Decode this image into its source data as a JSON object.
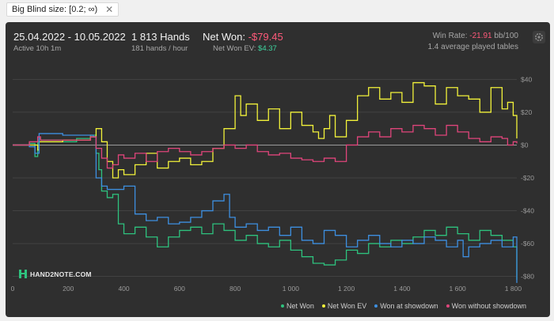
{
  "filter": {
    "label": "Big Blind size: [0.2; ∞)",
    "close_glyph": "✕"
  },
  "header": {
    "date_range": "25.04.2022 - 10.05.2022",
    "active": "Active 10h 1m",
    "hands": "1 813 Hands",
    "hands_per_hour": "181 hands / hour",
    "net_won_label": "Net Won:",
    "net_won_value": "-$79.45",
    "net_won_ev_label": "Net Won  EV:",
    "net_won_ev_value": "$4.37",
    "win_rate_label": "Win Rate:",
    "win_rate_value": "-21.91",
    "win_rate_unit": "bb/100",
    "avg_tables": "1.4 average played tables"
  },
  "logo": {
    "text": "HAND2NOTE.COM"
  },
  "colors": {
    "net_won": "#2ec27e",
    "net_won_ev": "#f2f23a",
    "won_at_showdown": "#3d8fe0",
    "won_without_showdown": "#e0457b",
    "grid": "#555555",
    "zero_line": "#9a9a9a",
    "axis_text": "#9a9a9a"
  },
  "chart_data": {
    "type": "line",
    "title": "",
    "xlabel": "",
    "ylabel": "",
    "xlim": [
      0,
      1813
    ],
    "ylim": [
      -85,
      45
    ],
    "x_ticks": [
      0,
      200,
      400,
      600,
      800,
      1000,
      1200,
      1400,
      1600,
      1800
    ],
    "x_tick_labels": [
      "0",
      "200",
      "400",
      "600",
      "800",
      "1 000",
      "1 200",
      "1 400",
      "1 600",
      "1 800"
    ],
    "y_ticks": [
      40,
      20,
      0,
      -20,
      -40,
      -60,
      -80
    ],
    "y_tick_labels": [
      "$40",
      "$20",
      "$0",
      "-$20",
      "-$40",
      "-$60",
      "-$80"
    ],
    "grid": true,
    "legend_position": "bottom-right",
    "series": [
      {
        "name": "Net Won",
        "color_key": "net_won",
        "x": [
          0,
          60,
          80,
          90,
          95,
          100,
          180,
          230,
          280,
          300,
          310,
          320,
          340,
          360,
          380,
          400,
          440,
          480,
          520,
          560,
          600,
          640,
          680,
          720,
          760,
          800,
          840,
          880,
          920,
          960,
          1000,
          1040,
          1080,
          1120,
          1160,
          1200,
          1240,
          1280,
          1320,
          1360,
          1400,
          1440,
          1480,
          1520,
          1560,
          1600,
          1640,
          1680,
          1720,
          1760,
          1800,
          1813
        ],
        "y": [
          0,
          1,
          -7,
          2,
          4,
          3,
          2,
          4,
          6,
          -5,
          -15,
          -28,
          -32,
          -30,
          -48,
          -54,
          -50,
          -56,
          -62,
          -56,
          -52,
          -50,
          -54,
          -48,
          -52,
          -58,
          -55,
          -60,
          -62,
          -58,
          -64,
          -68,
          -72,
          -73,
          -70,
          -64,
          -66,
          -60,
          -62,
          -58,
          -60,
          -56,
          -52,
          -55,
          -50,
          -54,
          -58,
          -52,
          -55,
          -58,
          -62,
          -82
        ]
      },
      {
        "name": "Net Won  EV",
        "color_key": "net_won_ev",
        "x": [
          0,
          60,
          90,
          95,
          180,
          280,
          300,
          320,
          340,
          360,
          380,
          400,
          440,
          480,
          520,
          560,
          600,
          640,
          680,
          720,
          760,
          800,
          820,
          840,
          880,
          920,
          960,
          1000,
          1040,
          1080,
          1100,
          1120,
          1140,
          1160,
          1200,
          1240,
          1280,
          1320,
          1360,
          1400,
          1440,
          1480,
          1520,
          1560,
          1600,
          1640,
          1680,
          1720,
          1760,
          1780,
          1800,
          1813
        ],
        "y": [
          0,
          0,
          -3,
          2,
          3,
          5,
          10,
          2,
          -10,
          -20,
          -15,
          -18,
          -12,
          -5,
          -14,
          -10,
          -8,
          -12,
          -10,
          -2,
          10,
          30,
          18,
          25,
          15,
          22,
          10,
          20,
          12,
          8,
          4,
          10,
          18,
          5,
          15,
          30,
          35,
          28,
          32,
          26,
          38,
          36,
          25,
          35,
          30,
          28,
          20,
          35,
          22,
          26,
          18,
          4
        ]
      },
      {
        "name": "Won at showdown",
        "color_key": "won_at_showdown",
        "x": [
          0,
          60,
          80,
          95,
          180,
          290,
          300,
          320,
          340,
          400,
          440,
          480,
          520,
          560,
          600,
          640,
          680,
          720,
          760,
          780,
          800,
          840,
          880,
          920,
          960,
          1000,
          1040,
          1080,
          1120,
          1160,
          1200,
          1240,
          1280,
          1320,
          1360,
          1400,
          1440,
          1480,
          1520,
          1560,
          1600,
          1620,
          1640,
          1680,
          1720,
          1760,
          1800,
          1813
        ],
        "y": [
          0,
          -1,
          -5,
          7,
          6,
          5,
          -20,
          -25,
          -27,
          -25,
          -42,
          -46,
          -44,
          -48,
          -47,
          -44,
          -40,
          -34,
          -30,
          -44,
          -50,
          -48,
          -52,
          -50,
          -55,
          -50,
          -58,
          -60,
          -52,
          -55,
          -62,
          -58,
          -55,
          -60,
          -62,
          -58,
          -60,
          -56,
          -58,
          -62,
          -58,
          -68,
          -62,
          -60,
          -58,
          -62,
          -56,
          -84
        ]
      },
      {
        "name": "Won without showdown",
        "color_key": "won_without_showdown",
        "x": [
          0,
          60,
          90,
          100,
          180,
          280,
          300,
          320,
          340,
          360,
          380,
          400,
          440,
          480,
          520,
          560,
          600,
          640,
          680,
          720,
          760,
          800,
          840,
          880,
          920,
          960,
          1000,
          1040,
          1080,
          1120,
          1160,
          1200,
          1240,
          1280,
          1320,
          1360,
          1400,
          1440,
          1480,
          1520,
          1560,
          1600,
          1640,
          1680,
          1720,
          1760,
          1780,
          1800,
          1813
        ],
        "y": [
          0,
          2,
          5,
          3,
          3,
          5,
          -2,
          -8,
          -14,
          -12,
          -6,
          -8,
          -5,
          -10,
          -4,
          -2,
          -4,
          -6,
          -4,
          -2,
          0,
          -2,
          0,
          -4,
          -6,
          -5,
          -8,
          -9,
          -10,
          -8,
          -10,
          0,
          5,
          8,
          5,
          10,
          8,
          12,
          10,
          6,
          12,
          8,
          4,
          2,
          5,
          4,
          0,
          2,
          1
        ]
      }
    ]
  }
}
